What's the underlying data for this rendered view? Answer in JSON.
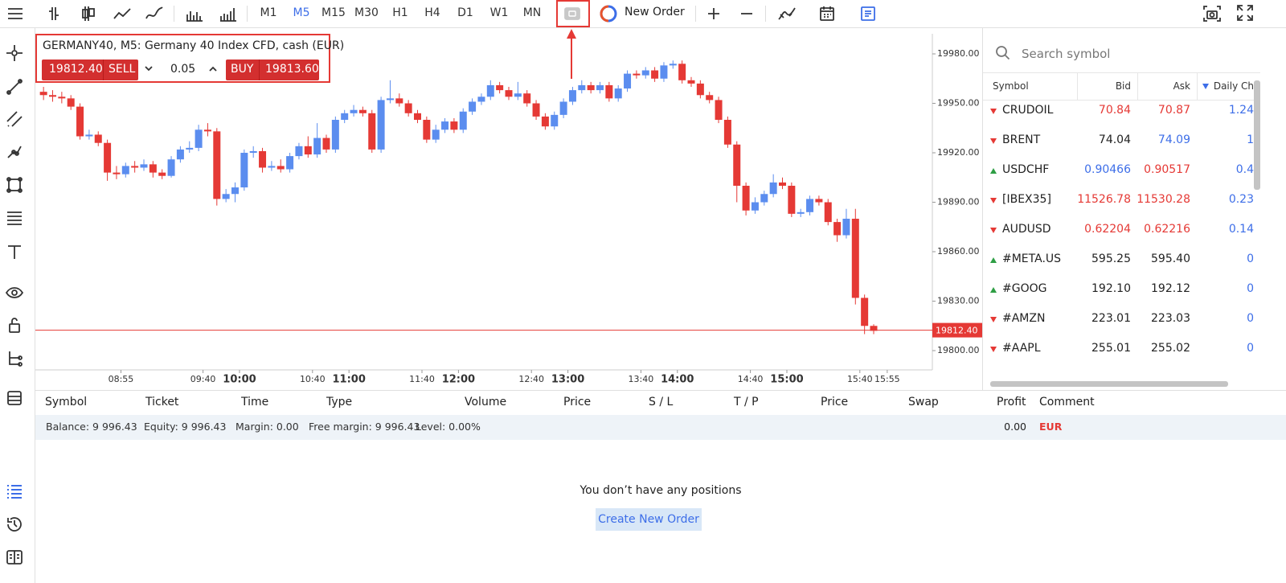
{
  "toolbar": {
    "timeframes": [
      "M1",
      "M5",
      "M15",
      "M30",
      "H1",
      "H4",
      "D1",
      "W1",
      "MN"
    ],
    "selected": "M5",
    "new_order": "New Order"
  },
  "symbol_panel": {
    "title": "GERMANY40, M5: Germany 40 Index CFD, cash (EUR)",
    "sell_price": "19812.40",
    "sell": "SELL",
    "volume": "0.05",
    "buy": "BUY",
    "buy_price": "19813.60"
  },
  "chart": {
    "up_color": "#5b8def",
    "down_color": "#e53935",
    "ylim": [
      19788.3,
      19992.2
    ],
    "yticks": [
      {
        "value": 19980,
        "label": "19980.00"
      },
      {
        "value": 19950,
        "label": "19950.00"
      },
      {
        "value": 19920,
        "label": "19920.00"
      },
      {
        "value": 19890,
        "label": "19890.00"
      },
      {
        "value": 19860,
        "label": "19860.00"
      },
      {
        "value": 19830,
        "label": "19830.00"
      },
      {
        "value": 19800,
        "label": "19800.00"
      }
    ],
    "xticks": [
      "08:55",
      "09:40",
      "10:00",
      "10:40",
      "11:00",
      "11:40",
      "12:00",
      "12:40",
      "13:00",
      "13:40",
      "14:00",
      "14:40",
      "15:00",
      "15:40",
      "15:55"
    ],
    "current_price": {
      "value": 19812.4,
      "label": "19812.40"
    },
    "candles": [
      [
        19957,
        19960,
        19952,
        19955
      ],
      [
        19955,
        19958,
        19951,
        19954
      ],
      [
        19954,
        19957,
        19950,
        19953
      ],
      [
        19953,
        19955,
        19946,
        19948
      ],
      [
        19948,
        19950,
        19928,
        19930
      ],
      [
        19930,
        19934,
        19928,
        19931
      ],
      [
        19931,
        19933,
        19924,
        19926
      ],
      [
        19926,
        19928,
        19903,
        19908
      ],
      [
        19908,
        19912,
        19904,
        19907
      ],
      [
        19907,
        19914,
        19905,
        19912
      ],
      [
        19912,
        19915,
        19908,
        19911
      ],
      [
        19911,
        19916,
        19909,
        19913
      ],
      [
        19913,
        19915,
        19905,
        19908
      ],
      [
        19908,
        19910,
        19904,
        19906
      ],
      [
        19906,
        19918,
        19905,
        19916
      ],
      [
        19916,
        19924,
        19914,
        19922
      ],
      [
        19922,
        19927,
        19920,
        19923
      ],
      [
        19923,
        19937,
        19921,
        19934
      ],
      [
        19934,
        19938,
        19930,
        19933
      ],
      [
        19933,
        19935,
        19888,
        19892
      ],
      [
        19892,
        19898,
        19890,
        19895
      ],
      [
        19895,
        19902,
        19890,
        19899
      ],
      [
        19899,
        19922,
        19897,
        19920
      ],
      [
        19920,
        19924,
        19917,
        19921
      ],
      [
        19921,
        19923,
        19908,
        19911
      ],
      [
        19911,
        19915,
        19909,
        19912
      ],
      [
        19912,
        19916,
        19908,
        19910
      ],
      [
        19910,
        19920,
        19908,
        19918
      ],
      [
        19918,
        19926,
        19916,
        19924
      ],
      [
        19924,
        19930,
        19917,
        19919
      ],
      [
        19919,
        19938,
        19917,
        19929
      ],
      [
        19929,
        19931,
        19920,
        19922
      ],
      [
        19922,
        19942,
        19920,
        19940
      ],
      [
        19940,
        19946,
        19938,
        19944
      ],
      [
        19944,
        19949,
        19942,
        19946
      ],
      [
        19946,
        19948,
        19942,
        19944
      ],
      [
        19944,
        19946,
        19920,
        19922
      ],
      [
        19922,
        19954,
        19920,
        19952
      ],
      [
        19952,
        19964,
        19950,
        19953
      ],
      [
        19953,
        19956,
        19948,
        19950
      ],
      [
        19950,
        19952,
        19942,
        19944
      ],
      [
        19944,
        19946,
        19938,
        19940
      ],
      [
        19940,
        19942,
        19926,
        19928
      ],
      [
        19928,
        19937,
        19926,
        19934
      ],
      [
        19934,
        19941,
        19932,
        19939
      ],
      [
        19939,
        19941,
        19932,
        19934
      ],
      [
        19934,
        19947,
        19932,
        19945
      ],
      [
        19945,
        19953,
        19943,
        19951
      ],
      [
        19951,
        19956,
        19949,
        19954
      ],
      [
        19954,
        19964,
        19952,
        19961
      ],
      [
        19961,
        19963,
        19956,
        19958
      ],
      [
        19958,
        19960,
        19952,
        19954
      ],
      [
        19954,
        19963,
        19952,
        19956
      ],
      [
        19956,
        19958,
        19948,
        19950
      ],
      [
        19950,
        19952,
        19940,
        19942
      ],
      [
        19942,
        19944,
        19934,
        19936
      ],
      [
        19936,
        19945,
        19934,
        19943
      ],
      [
        19943,
        19953,
        19941,
        19951
      ],
      [
        19951,
        19960,
        19949,
        19958
      ],
      [
        19958,
        19964,
        19956,
        19961
      ],
      [
        19961,
        19963,
        19956,
        19958
      ],
      [
        19958,
        19963,
        19956,
        19961
      ],
      [
        19961,
        19963,
        19951,
        19953
      ],
      [
        19953,
        19961,
        19951,
        19959
      ],
      [
        19959,
        19970,
        19957,
        19968
      ],
      [
        19968,
        19970,
        19965,
        19967
      ],
      [
        19967,
        19972,
        19965,
        19970
      ],
      [
        19970,
        19972,
        19963,
        19965
      ],
      [
        19965,
        19975,
        19963,
        19973
      ],
      [
        19973,
        19976,
        19971,
        19974
      ],
      [
        19974,
        19976,
        19962,
        19964
      ],
      [
        19964,
        19966,
        19960,
        19962
      ],
      [
        19962,
        19964,
        19953,
        19955
      ],
      [
        19955,
        19957,
        19950,
        19952
      ],
      [
        19952,
        19954,
        19938,
        19940
      ],
      [
        19940,
        19942,
        19923,
        19925
      ],
      [
        19925,
        19927,
        19890,
        19900
      ],
      [
        19900,
        19902,
        19882,
        19885
      ],
      [
        19885,
        19893,
        19883,
        19890
      ],
      [
        19890,
        19897,
        19888,
        19895
      ],
      [
        19895,
        19907,
        19893,
        19902
      ],
      [
        19902,
        19905,
        19898,
        19900
      ],
      [
        19900,
        19902,
        19881,
        19883
      ],
      [
        19883,
        19886,
        19881,
        19884
      ],
      [
        19884,
        19894,
        19882,
        19892
      ],
      [
        19892,
        19894,
        19888,
        19890
      ],
      [
        19890,
        19892,
        19876,
        19878
      ],
      [
        19878,
        19880,
        19866,
        19870
      ],
      [
        19870,
        19886,
        19868,
        19880
      ],
      [
        19880,
        19886,
        19828,
        19832
      ],
      [
        19832,
        19834,
        19810,
        19815
      ],
      [
        19815,
        19816,
        19810,
        19812
      ]
    ]
  },
  "watchlist": {
    "search_placeholder": "Search symbol",
    "columns": [
      "Symbol",
      "Bid",
      "Ask",
      "Daily Ch"
    ],
    "rows": [
      {
        "symbol": "CRUDOIL",
        "trend": "down",
        "bid": "70.84",
        "bid_color": "#e53935",
        "ask": "70.87",
        "ask_color": "#e53935",
        "change": "1.24"
      },
      {
        "symbol": "BRENT",
        "trend": "down",
        "bid": "74.04",
        "bid_color": "#222222",
        "ask": "74.09",
        "ask_color": "#3d6ee8",
        "change": "1"
      },
      {
        "symbol": "USDCHF",
        "trend": "up",
        "bid": "0.90466",
        "bid_color": "#3d6ee8",
        "ask": "0.90517",
        "ask_color": "#e53935",
        "change": "0.4"
      },
      {
        "symbol": "[IBEX35]",
        "trend": "down",
        "bid": "11526.78",
        "bid_color": "#e53935",
        "ask": "11530.28",
        "ask_color": "#e53935",
        "change": "0.23"
      },
      {
        "symbol": "AUDUSD",
        "trend": "down",
        "bid": "0.62204",
        "bid_color": "#e53935",
        "ask": "0.62216",
        "ask_color": "#e53935",
        "change": "0.14"
      },
      {
        "symbol": "#META.US",
        "trend": "up",
        "bid": "595.25",
        "bid_color": "#222222",
        "ask": "595.40",
        "ask_color": "#222222",
        "change": "0"
      },
      {
        "symbol": "#GOOG",
        "trend": "up",
        "bid": "192.10",
        "bid_color": "#222222",
        "ask": "192.12",
        "ask_color": "#222222",
        "change": "0"
      },
      {
        "symbol": "#AMZN",
        "trend": "down",
        "bid": "223.01",
        "bid_color": "#222222",
        "ask": "223.03",
        "ask_color": "#222222",
        "change": "0"
      },
      {
        "symbol": "#AAPL",
        "trend": "down",
        "bid": "255.01",
        "bid_color": "#222222",
        "ask": "255.02",
        "ask_color": "#222222",
        "change": "0"
      }
    ]
  },
  "positions": {
    "columns": [
      "Symbol",
      "Ticket",
      "Time",
      "Type",
      "Volume",
      "Price",
      "S / L",
      "T / P",
      "Price",
      "Swap",
      "Profit",
      "Comment"
    ],
    "summary": [
      "Balance: 9 996.43",
      "Equity: 9 996.43",
      "Margin: 0.00",
      "Free margin: 9 996.43",
      "Level: 0.00%"
    ],
    "profit": "0.00",
    "currency": "EUR",
    "empty_message": "You don’t have any positions",
    "create_button": "Create New Order"
  }
}
